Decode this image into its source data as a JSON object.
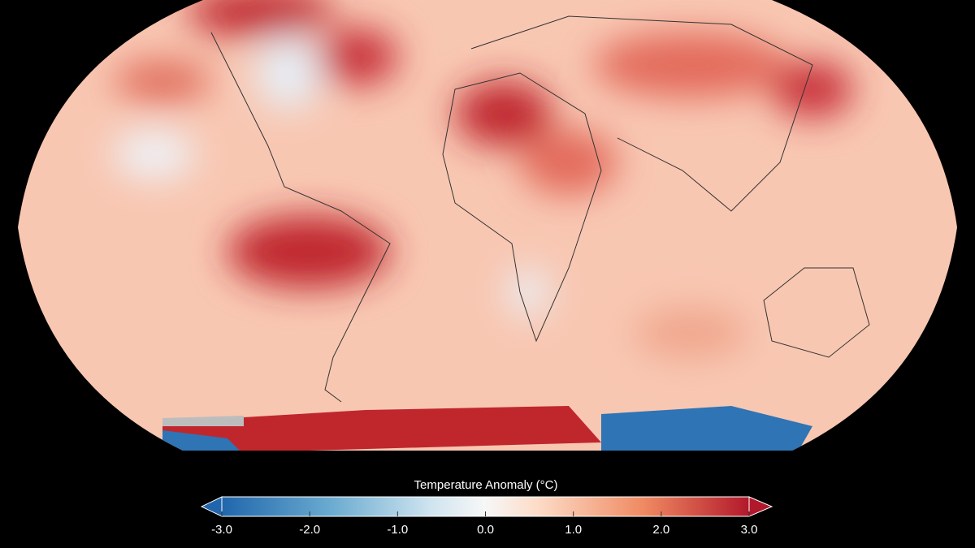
{
  "colorbar": {
    "title": "Temperature Anomaly (°C)",
    "lim": [
      -3,
      3
    ],
    "ticks": [
      {
        "value": -3,
        "label": "-3.0"
      },
      {
        "value": -2,
        "label": "-2.0"
      },
      {
        "value": -1,
        "label": "-1.0"
      },
      {
        "value": 0,
        "label": "0.0"
      },
      {
        "value": 1,
        "label": "1.0"
      },
      {
        "value": 2,
        "label": "2.0"
      },
      {
        "value": 3,
        "label": "3.0"
      }
    ]
  }
}
